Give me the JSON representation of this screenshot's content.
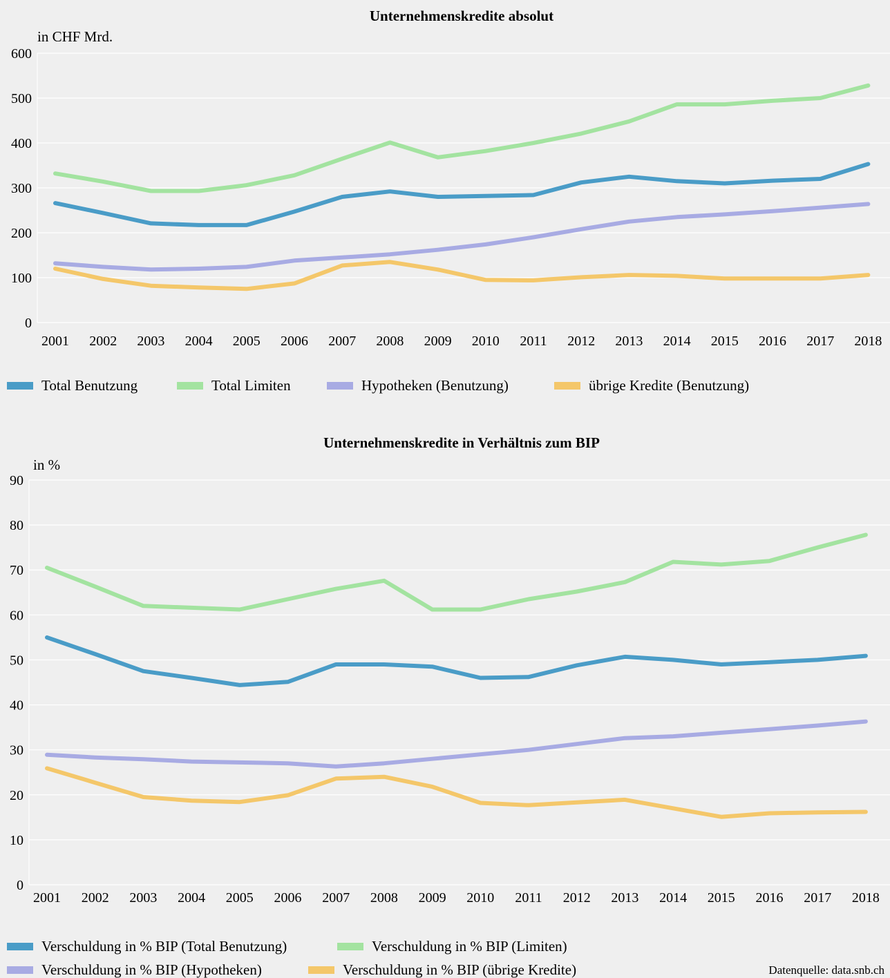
{
  "chart_data": [
    {
      "type": "line",
      "title": "Unternehmenskredite absolut",
      "ylabel": "in CHF Mrd.",
      "ylim": [
        0,
        600
      ],
      "yticks": [
        "0",
        "100",
        "200",
        "300",
        "400",
        "500",
        "600"
      ],
      "categories": [
        "2001",
        "2002",
        "2003",
        "2004",
        "2005",
        "2006",
        "2007",
        "2008",
        "2009",
        "2010",
        "2011",
        "2012",
        "2013",
        "2014",
        "2015",
        "2016",
        "2017",
        "2018"
      ],
      "series": [
        {
          "name": "Total Benutzung",
          "color": "#4a9cc7",
          "values": [
            266,
            244,
            221,
            217,
            217,
            247,
            280,
            292,
            280,
            282,
            284,
            312,
            325,
            315,
            310,
            316,
            320,
            353
          ]
        },
        {
          "name": "Total Limiten",
          "color": "#a3e3a0",
          "values": [
            332,
            314,
            293,
            293,
            306,
            328,
            365,
            401,
            368,
            382,
            400,
            421,
            448,
            486,
            486,
            494,
            500,
            528
          ]
        },
        {
          "name": "Hypotheken (Benutzung)",
          "color": "#a8abe3",
          "values": [
            132,
            124,
            118,
            120,
            124,
            138,
            145,
            152,
            162,
            174,
            190,
            208,
            225,
            235,
            241,
            248,
            256,
            264
          ]
        },
        {
          "name": "übrige Kredite (Benutzung)",
          "color": "#f4c76a",
          "values": [
            120,
            97,
            82,
            78,
            75,
            87,
            127,
            135,
            118,
            95,
            94,
            101,
            106,
            104,
            98,
            98,
            98,
            106
          ]
        }
      ],
      "legend_position": "bottom"
    },
    {
      "type": "line",
      "title": "Unternehmenskredite in Verhältnis zum BIP",
      "ylabel": "in %",
      "ylim": [
        0,
        90
      ],
      "yticks": [
        "0",
        "10",
        "20",
        "30",
        "40",
        "50",
        "60",
        "70",
        "80",
        "90"
      ],
      "categories": [
        "2001",
        "2002",
        "2003",
        "2004",
        "2005",
        "2006",
        "2007",
        "2008",
        "2009",
        "2010",
        "2011",
        "2012",
        "2013",
        "2014",
        "2015",
        "2016",
        "2017",
        "2018"
      ],
      "series": [
        {
          "name": "Verschuldung in % BIP (Total Benutzung)",
          "color": "#4a9cc7",
          "values": [
            55.0,
            51.3,
            47.5,
            46.0,
            44.4,
            45.1,
            49.0,
            49.0,
            48.5,
            46.0,
            46.2,
            48.8,
            50.7,
            50.0,
            49.0,
            49.5,
            50.0,
            50.9
          ]
        },
        {
          "name": "Verschuldung in % BIP (Limiten)",
          "color": "#a3e3a0",
          "values": [
            70.5,
            66.3,
            62.0,
            61.6,
            61.2,
            63.5,
            65.8,
            67.6,
            61.2,
            61.2,
            63.5,
            65.2,
            67.3,
            71.8,
            71.2,
            72.0,
            75.0,
            77.8
          ]
        },
        {
          "name": "Verschuldung in % BIP (Hypotheken)",
          "color": "#a8abe3",
          "values": [
            28.9,
            28.3,
            27.9,
            27.4,
            27.2,
            27.0,
            26.3,
            27.0,
            28.0,
            29.0,
            30.0,
            31.3,
            32.6,
            33.0,
            33.8,
            34.6,
            35.4,
            36.3
          ]
        },
        {
          "name": "Verschuldung in % BIP (übrige Kredite)",
          "color": "#f4c76a",
          "values": [
            25.9,
            22.7,
            19.5,
            18.7,
            18.4,
            19.9,
            23.6,
            24.0,
            21.8,
            18.2,
            17.7,
            18.3,
            18.9,
            17.0,
            15.1,
            15.9,
            16.1,
            16.2
          ]
        }
      ],
      "legend_position": "bottom"
    }
  ],
  "source": "Datenquelle: data.snb.ch"
}
